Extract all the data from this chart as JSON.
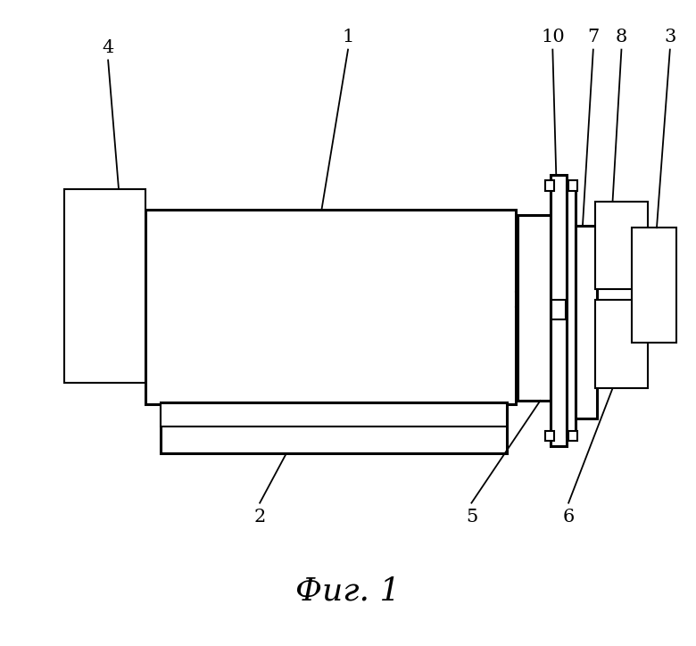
{
  "fig_width": 7.8,
  "fig_height": 7.24,
  "dpi": 100,
  "bg_color": "#ffffff",
  "line_color": "#000000",
  "lw_main": 2.2,
  "lw_thin": 1.5,
  "lw_leader": 1.3,
  "caption": "Фиг. 1",
  "caption_fontsize": 26
}
